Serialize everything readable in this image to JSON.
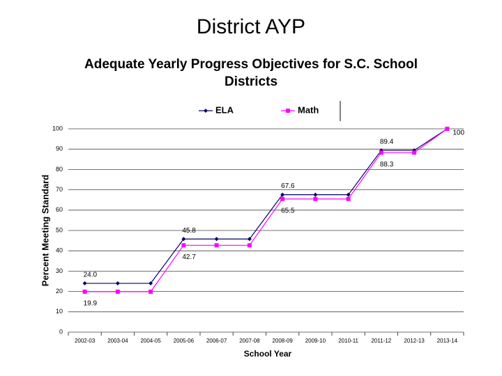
{
  "page_title": "District AYP",
  "chart_data": {
    "type": "line",
    "title": "Adequate Yearly Progress Objectives for S.C. School Districts",
    "x_label": "School Year",
    "y_label": "Percent Meeting Standard",
    "categories": [
      "2002-03",
      "2003-04",
      "2004-05",
      "2005-06",
      "2006-07",
      "2007-08",
      "2008-09",
      "2009-10",
      "2010-11",
      "2011-12",
      "2012-13",
      "2013-14"
    ],
    "series": [
      {
        "name": "ELA",
        "color": "#000066",
        "marker": "diamond",
        "values": [
          24.0,
          24.0,
          24.0,
          45.8,
          45.8,
          45.8,
          67.6,
          67.6,
          67.6,
          89.4,
          89.4,
          100
        ],
        "value_labels": [
          "24.0",
          null,
          null,
          "45.8",
          null,
          null,
          "67.6",
          null,
          null,
          "89.4",
          null,
          null
        ]
      },
      {
        "name": "Math",
        "color": "#ff00ff",
        "marker": "square",
        "values": [
          19.9,
          19.9,
          19.9,
          42.7,
          42.7,
          42.7,
          65.5,
          65.5,
          65.5,
          88.3,
          88.3,
          100
        ],
        "value_labels": [
          "19.9",
          null,
          null,
          "42.7",
          null,
          null,
          "65.5",
          null,
          null,
          "88.3",
          null,
          "100"
        ]
      }
    ],
    "ylim": [
      0,
      100
    ],
    "yticks": [
      0,
      10,
      20,
      30,
      40,
      50,
      60,
      70,
      80,
      90,
      100
    ],
    "grid": true,
    "legend": "top"
  }
}
